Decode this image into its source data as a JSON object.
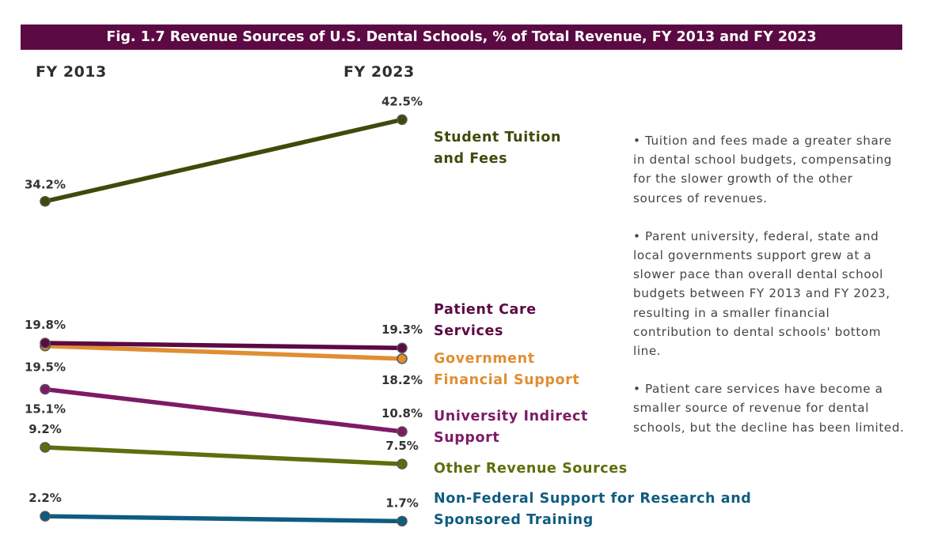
{
  "title": "Fig. 1.7 Revenue Sources of U.S. Dental Schools, % of Total Revenue, FY 2013 and FY 2023",
  "chart_data": {
    "type": "line",
    "title": "Fig. 1.7 Revenue Sources of U.S. Dental Schools, % of Total Revenue, FY 2013 and FY 2023",
    "categories": [
      "FY 2013",
      "FY 2023"
    ],
    "series": [
      {
        "name": "Student Tuition and Fees",
        "label_lines": [
          "Student Tuition",
          "and Fees"
        ],
        "values": [
          34.2,
          42.5
        ],
        "value_labels": [
          "34.2%",
          "42.5%"
        ],
        "color": "#3f4a0b"
      },
      {
        "name": "Patient Care Services",
        "label_lines": [
          "Patient Care",
          "Services"
        ],
        "values": [
          19.8,
          19.3
        ],
        "value_labels": [
          "19.8%",
          "19.3%"
        ],
        "color": "#5c0a43"
      },
      {
        "name": "Government Financial Support",
        "label_lines": [
          "Government",
          "Financial Support"
        ],
        "values": [
          19.5,
          18.2
        ],
        "value_labels": [
          "19.5%",
          "18.2%"
        ],
        "color": "#e08e33"
      },
      {
        "name": "University Indirect Support",
        "label_lines": [
          "University Indirect",
          "Support"
        ],
        "values": [
          15.1,
          10.8
        ],
        "value_labels": [
          "15.1%",
          "10.8%"
        ],
        "color": "#7e1a66"
      },
      {
        "name": "Other Revenue Sources",
        "label_lines": [
          "Other Revenue Sources"
        ],
        "values": [
          9.2,
          7.5
        ],
        "value_labels": [
          "9.2%",
          "7.5%"
        ],
        "color": "#5f6e0c"
      },
      {
        "name": "Non-Federal Support for Research and Sponsored Training",
        "label_lines": [
          "Non-Federal Support for Research and",
          "Sponsored Training"
        ],
        "values": [
          2.2,
          1.7
        ],
        "value_labels": [
          "2.2%",
          "1.7%"
        ],
        "color": "#0f5c80"
      }
    ],
    "ylim": [
      0,
      45
    ]
  },
  "notes": [
    "• Tuition and fees made a greater share in dental school budgets, compensating for the slower growth of the other sources of revenues.",
    "• Parent university, federal, state and local governments support grew at a slower pace than overall dental school budgets between FY 2013 and FY 2023, resulting in a smaller financial contribution to dental schools' bottom line.",
    "• Patient care services have become a smaller source of revenue for dental schools, but the decline has been limited."
  ]
}
